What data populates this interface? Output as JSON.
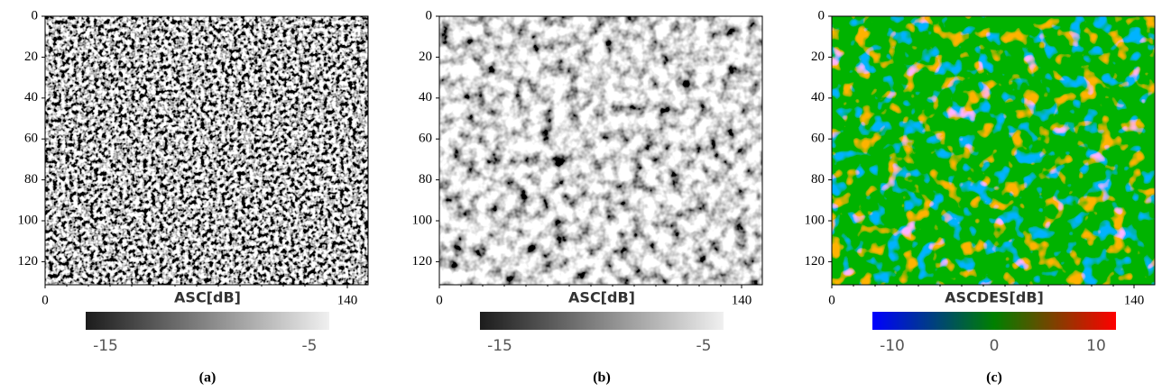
{
  "panels": [
    {
      "yticks": [
        0,
        20,
        40,
        60,
        80,
        100,
        120
      ],
      "xticks": [
        0,
        140
      ],
      "xlabel": "ASC[dB]",
      "colorbar_ticks": [
        -15,
        -5
      ],
      "caption": "(a)"
    },
    {
      "yticks": [
        0,
        20,
        40,
        60,
        80,
        100,
        120
      ],
      "xticks": [
        0,
        140
      ],
      "xlabel": "ASC[dB]",
      "colorbar_ticks": [
        -15,
        -5
      ],
      "caption": "(b)"
    },
    {
      "yticks": [
        0,
        20,
        40,
        60,
        80,
        100,
        120
      ],
      "xticks": [
        0,
        140
      ],
      "xlabel": "ASCDES[dB]",
      "colorbar_ticks": [
        -10,
        0,
        10
      ],
      "caption": "(c)"
    }
  ]
}
